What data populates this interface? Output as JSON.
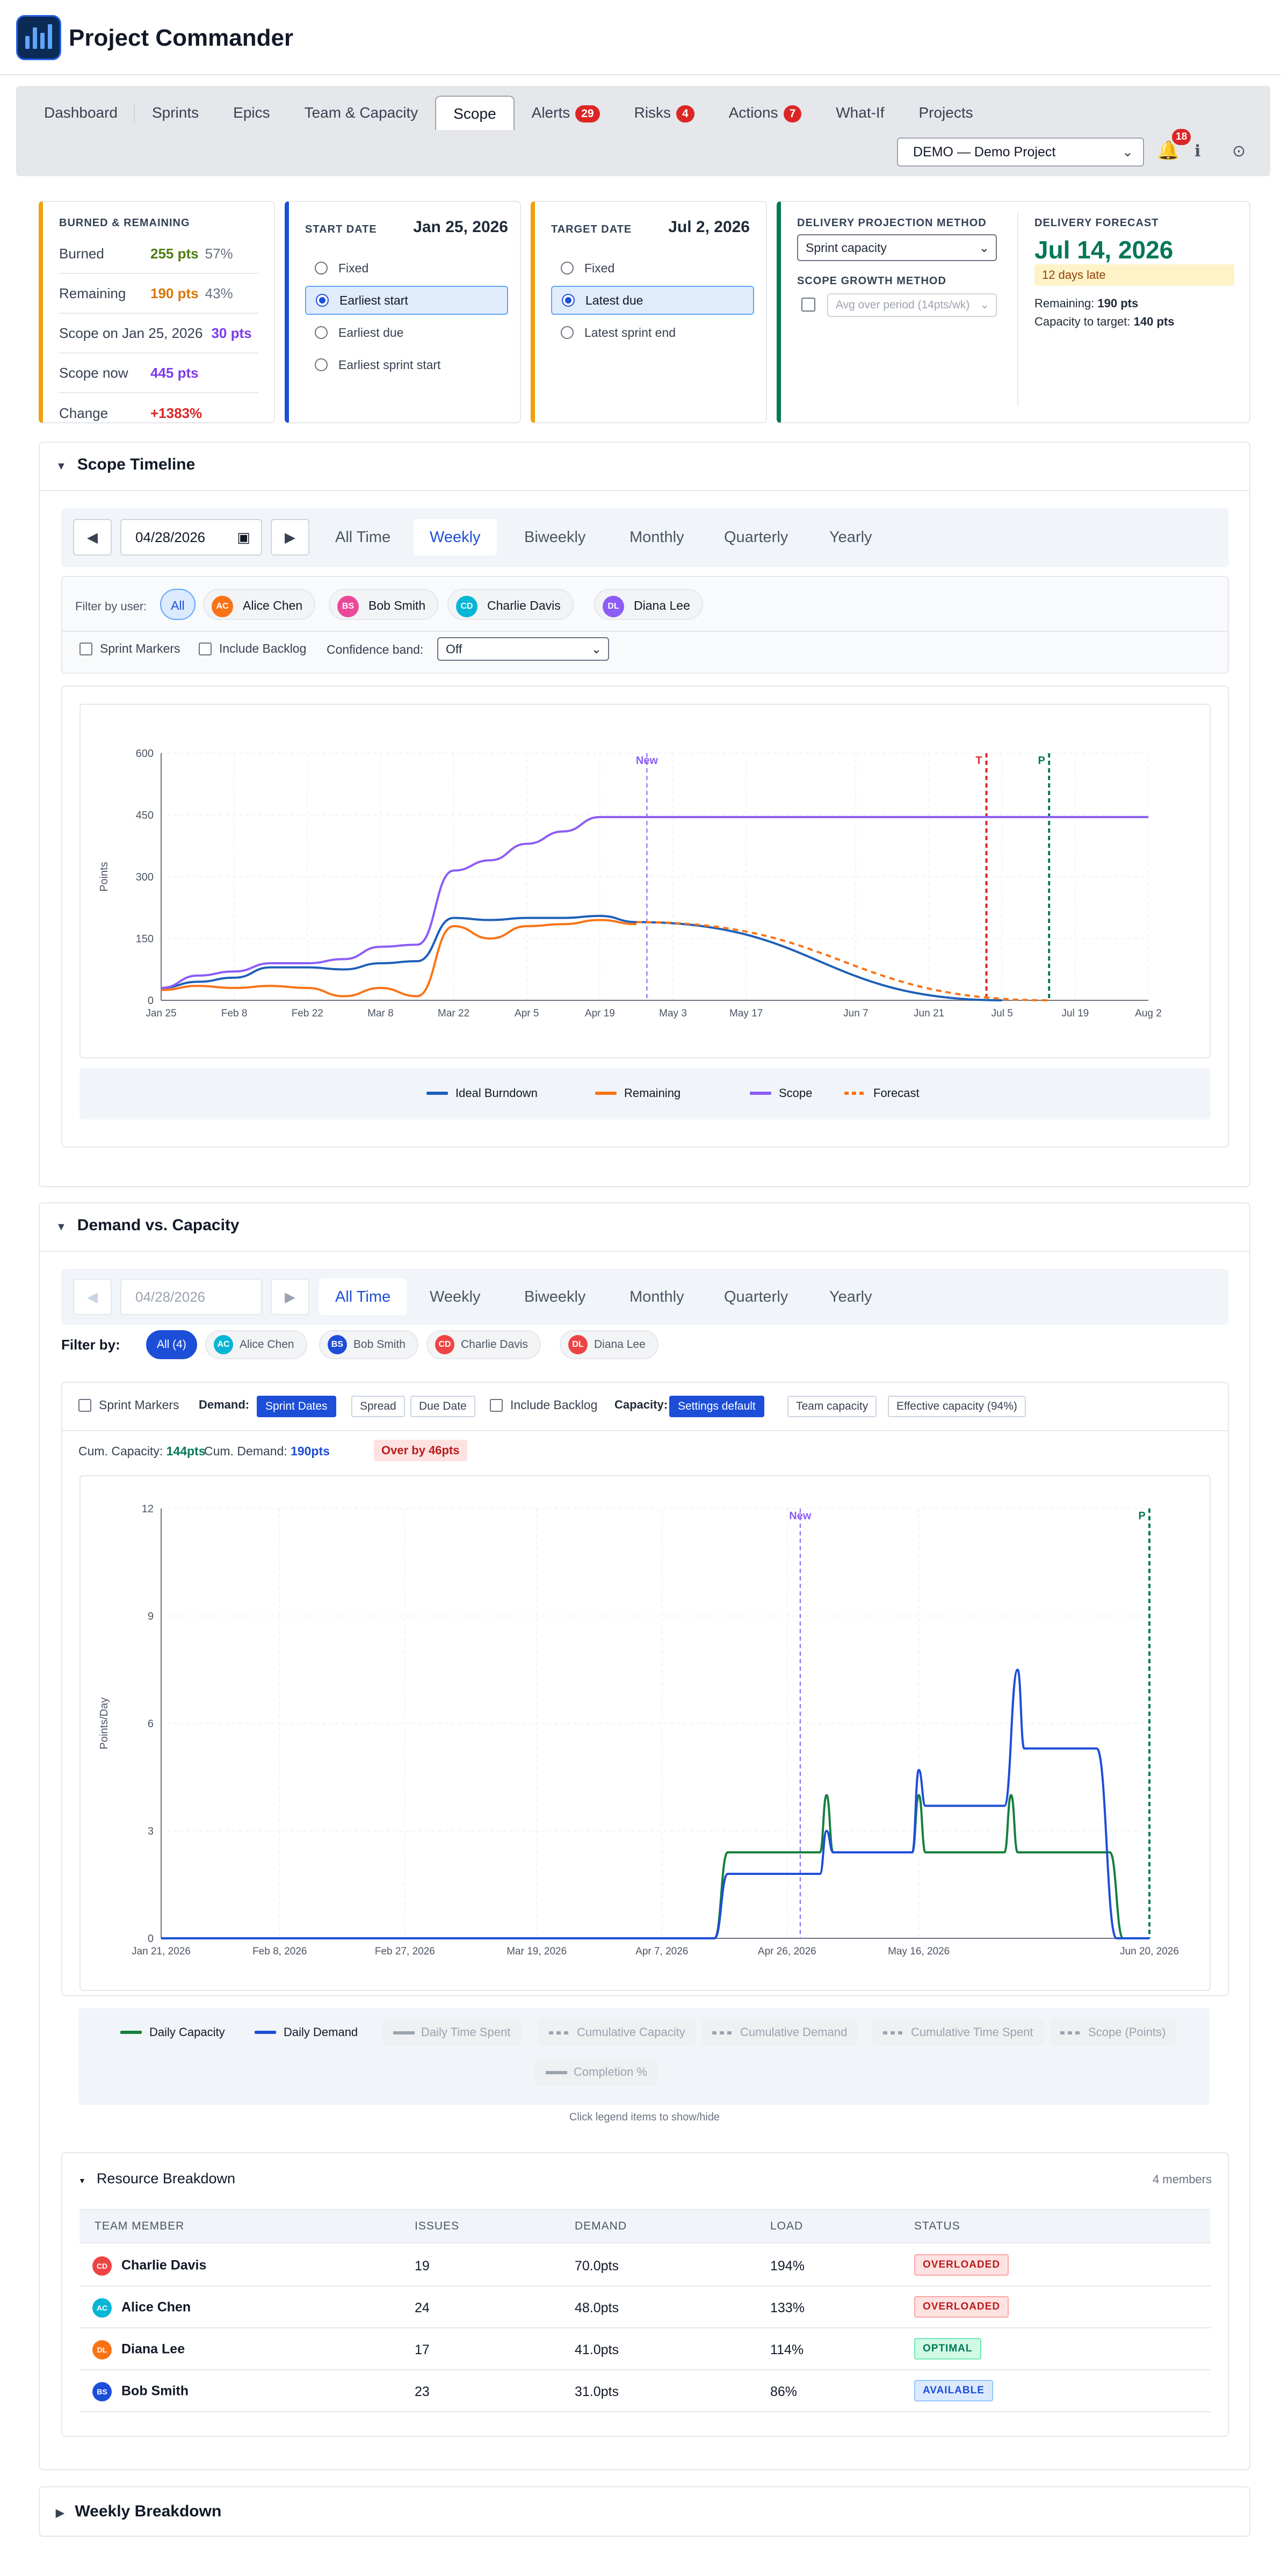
{
  "app": {
    "title": "Project Commander",
    "logo_icon": "bar-chart-logo-icon"
  },
  "nav": {
    "tabs": [
      {
        "label": "Dashboard"
      },
      {
        "label": "Sprints"
      },
      {
        "label": "Epics"
      },
      {
        "label": "Team & Capacity"
      },
      {
        "label": "Scope",
        "active": true
      },
      {
        "label": "Alerts",
        "badge": "29"
      },
      {
        "label": "Risks",
        "badge": "4"
      },
      {
        "label": "Actions",
        "badge": "7"
      },
      {
        "label": "What-If"
      },
      {
        "label": "Projects"
      }
    ],
    "project": "DEMO — Demo Project",
    "notifications": "18"
  },
  "summary": {
    "burned_title": "BURNED & REMAINING",
    "rows": [
      {
        "k": "Burned",
        "v": "255 pts",
        "p": "57%",
        "color": "#4d7c0f"
      },
      {
        "k": "Remaining",
        "v": "190 pts",
        "p": "43%",
        "color": "#d97706"
      },
      {
        "k": "Scope on Jan 25, 2026",
        "v": "30 pts",
        "p": "",
        "color": "#7c3aed"
      },
      {
        "k": "Scope now",
        "v": "445 pts",
        "p": "",
        "color": "#7c3aed"
      },
      {
        "k": "Change",
        "v": "+1383%",
        "p": "",
        "color": "#dc2626"
      }
    ],
    "start": {
      "label": "START DATE",
      "date": "Jan 25, 2026",
      "options": [
        "Fixed",
        "Earliest start",
        "Earliest due",
        "Earliest sprint start"
      ],
      "selected": 1
    },
    "target": {
      "label": "TARGET DATE",
      "date": "Jul 2, 2026",
      "options": [
        "Fixed",
        "Latest due",
        "Latest sprint end"
      ],
      "selected": 1
    },
    "method": {
      "label": "DELIVERY PROJECTION METHOD",
      "value": "Sprint capacity",
      "growth_label": "SCOPE GROWTH METHOD",
      "growth_value": "Avg over period (14pts/wk)"
    },
    "forecast": {
      "label": "DELIVERY FORECAST",
      "date": "Jul 14, 2026",
      "late": "12 days late",
      "remaining_label": "Remaining:",
      "remaining": "190 pts",
      "capacity_label": "Capacity to target:",
      "capacity": "140 pts"
    }
  },
  "scope_timeline": {
    "title": "Scope Timeline",
    "date": "04/28/2026",
    "periods": [
      "All Time",
      "Weekly",
      "Biweekly",
      "Monthly",
      "Quarterly",
      "Yearly"
    ],
    "active_period": "Weekly",
    "filter_label": "Filter by user:",
    "users": [
      "All",
      "Alice Chen",
      "Bob Smith",
      "Charlie Davis",
      "Diana Lee"
    ],
    "sprint_markers": "Sprint Markers",
    "include_backlog": "Include Backlog",
    "confidence_label": "Confidence band:",
    "confidence": "Off"
  },
  "demand": {
    "title": "Demand vs. Capacity",
    "date": "04/28/2026",
    "periods": [
      "All Time",
      "Weekly",
      "Biweekly",
      "Monthly",
      "Quarterly",
      "Yearly"
    ],
    "active_period": "All Time",
    "filter_label": "Filter by:",
    "users": [
      "All (4)",
      "Alice Chen",
      "Bob Smith",
      "Charlie Davis",
      "Diana Lee"
    ],
    "sprint_markers": "Sprint Markers",
    "demand_label": "Demand:",
    "demand_opts": [
      "Sprint Dates",
      "Spread",
      "Due Date"
    ],
    "include_backlog": "Include Backlog",
    "capacity_label": "Capacity:",
    "capacity_opts": [
      "Settings default",
      "Team capacity",
      "Effective capacity (94%)"
    ],
    "cum_cap_label": "Cum. Capacity:",
    "cum_cap": "144pts",
    "cum_dem_label": "Cum. Demand:",
    "cum_dem": "190pts",
    "over": "Over by 46pts",
    "legend_active": [
      "Daily Capacity",
      "Daily Demand"
    ],
    "legend_inactive": [
      "Daily Time Spent",
      "Cumulative Capacity",
      "Cumulative Demand",
      "Cumulative Time Spent",
      "Scope (Points)",
      "Completion %"
    ],
    "legend_hint": "Click legend items to show/hide"
  },
  "resources": {
    "title": "Resource Breakdown",
    "count": "4 members",
    "headers": [
      "TEAM MEMBER",
      "ISSUES",
      "DEMAND",
      "LOAD",
      "STATUS"
    ],
    "rows": [
      {
        "initials": "CD",
        "name": "Charlie Davis",
        "issues": "19",
        "demand": "70.0pts",
        "load": "194%",
        "status": "OVERLOADED",
        "color": "#ef4444",
        "st": "over"
      },
      {
        "initials": "AC",
        "name": "Alice Chen",
        "issues": "24",
        "demand": "48.0pts",
        "load": "133%",
        "status": "OVERLOADED",
        "color": "#06b6d4",
        "st": "over"
      },
      {
        "initials": "DL",
        "name": "Diana Lee",
        "issues": "17",
        "demand": "41.0pts",
        "load": "114%",
        "status": "OPTIMAL",
        "color": "#f97316",
        "st": "opt"
      },
      {
        "initials": "BS",
        "name": "Bob Smith",
        "issues": "23",
        "demand": "31.0pts",
        "load": "86%",
        "status": "AVAILABLE",
        "color": "#1d4ed8",
        "st": "av"
      }
    ]
  },
  "weekly": {
    "title": "Weekly Breakdown"
  },
  "chart_data": [
    {
      "type": "line",
      "ylabel": "Points",
      "ylim": [
        0,
        600
      ],
      "yticks": [
        0,
        150,
        300,
        450,
        600
      ],
      "xticks": [
        "Jan 25",
        "Feb 8",
        "Feb 22",
        "Mar 8",
        "Mar 22",
        "Apr 5",
        "Apr 19",
        "May 3",
        "May 17",
        "Jun 7",
        "Jun 21",
        "Jul 5",
        "Jul 19",
        "Aug 2"
      ],
      "xlim": [
        "2026-01-25",
        "2026-08-02"
      ],
      "markers": [
        {
          "label": "New",
          "x": "2026-04-28",
          "color": "#8b5cf6"
        },
        {
          "label": "T",
          "x": "2026-07-02",
          "color": "#dc2626"
        },
        {
          "label": "P",
          "x": "2026-07-14",
          "color": "#047857"
        }
      ],
      "grid": true,
      "legend": "bottom",
      "series": [
        {
          "name": "Ideal Burndown",
          "color": "#1d5fb8",
          "points": [
            [
              "2026-01-25",
              30
            ],
            [
              "2026-02-01",
              45
            ],
            [
              "2026-02-08",
              55
            ],
            [
              "2026-02-15",
              80
            ],
            [
              "2026-02-22",
              80
            ],
            [
              "2026-03-01",
              75
            ],
            [
              "2026-03-08",
              90
            ],
            [
              "2026-03-15",
              95
            ],
            [
              "2026-03-22",
              200
            ],
            [
              "2026-03-29",
              195
            ],
            [
              "2026-04-05",
              200
            ],
            [
              "2026-04-12",
              200
            ],
            [
              "2026-04-19",
              205
            ],
            [
              "2026-04-26",
              190
            ],
            [
              "2026-07-05",
              0
            ]
          ]
        },
        {
          "name": "Remaining",
          "color": "#f97316",
          "points": [
            [
              "2026-01-25",
              25
            ],
            [
              "2026-02-01",
              35
            ],
            [
              "2026-02-08",
              30
            ],
            [
              "2026-02-15",
              35
            ],
            [
              "2026-02-22",
              30
            ],
            [
              "2026-03-01",
              10
            ],
            [
              "2026-03-08",
              30
            ],
            [
              "2026-03-15",
              10
            ],
            [
              "2026-03-22",
              180
            ],
            [
              "2026-03-29",
              150
            ],
            [
              "2026-04-05",
              180
            ],
            [
              "2026-04-12",
              185
            ],
            [
              "2026-04-19",
              195
            ],
            [
              "2026-04-26",
              185
            ]
          ]
        },
        {
          "name": "Scope",
          "color": "#8b5cf6",
          "points": [
            [
              "2026-01-25",
              30
            ],
            [
              "2026-02-01",
              60
            ],
            [
              "2026-02-08",
              70
            ],
            [
              "2026-02-15",
              90
            ],
            [
              "2026-02-22",
              90
            ],
            [
              "2026-03-01",
              100
            ],
            [
              "2026-03-08",
              130
            ],
            [
              "2026-03-15",
              135
            ],
            [
              "2026-03-22",
              315
            ],
            [
              "2026-03-29",
              340
            ],
            [
              "2026-04-05",
              380
            ],
            [
              "2026-04-12",
              410
            ],
            [
              "2026-04-19",
              445
            ],
            [
              "2026-04-26",
              445
            ],
            [
              "2026-08-02",
              445
            ]
          ]
        },
        {
          "name": "Forecast",
          "color": "#f97316",
          "dashed": true,
          "points": [
            [
              "2026-04-26",
              190
            ],
            [
              "2026-07-14",
              0
            ]
          ]
        }
      ]
    },
    {
      "type": "line",
      "ylabel": "Points/Day",
      "ylim": [
        0,
        12
      ],
      "yticks": [
        0,
        3,
        6,
        9,
        12
      ],
      "xticks": [
        "Jan 21, 2026",
        "Feb 8, 2026",
        "Feb 27, 2026",
        "Mar 19, 2026",
        "Apr 7, 2026",
        "Apr 26, 2026",
        "May 16, 2026",
        "Jun 20, 2026"
      ],
      "xlim": [
        "2026-01-21",
        "2026-06-20"
      ],
      "markers": [
        {
          "label": "New",
          "x": "2026-04-28",
          "color": "#8b5cf6"
        },
        {
          "label": "P",
          "x": "2026-06-20",
          "color": "#047857"
        }
      ],
      "grid": true,
      "legend": "bottom",
      "series": [
        {
          "name": "Daily Capacity",
          "color": "#15803d",
          "points": [
            [
              "2026-01-21",
              0
            ],
            [
              "2026-04-15",
              0
            ],
            [
              "2026-04-17",
              2.4
            ],
            [
              "2026-05-01",
              2.4
            ],
            [
              "2026-05-02",
              4
            ],
            [
              "2026-05-03",
              2.4
            ],
            [
              "2026-05-15",
              2.4
            ],
            [
              "2026-05-16",
              4
            ],
            [
              "2026-05-17",
              2.4
            ],
            [
              "2026-05-29",
              2.4
            ],
            [
              "2026-05-30",
              4
            ],
            [
              "2026-05-31",
              2.4
            ],
            [
              "2026-06-14",
              2.4
            ],
            [
              "2026-06-16",
              0
            ],
            [
              "2026-06-20",
              0
            ]
          ]
        },
        {
          "name": "Daily Demand",
          "color": "#1d4ed8",
          "points": [
            [
              "2026-01-21",
              0
            ],
            [
              "2026-04-15",
              0
            ],
            [
              "2026-04-17",
              1.8
            ],
            [
              "2026-05-01",
              1.8
            ],
            [
              "2026-05-02",
              3
            ],
            [
              "2026-05-03",
              2.4
            ],
            [
              "2026-05-15",
              2.4
            ],
            [
              "2026-05-16",
              4.7
            ],
            [
              "2026-05-17",
              3.7
            ],
            [
              "2026-05-29",
              3.7
            ],
            [
              "2026-05-31",
              7.5
            ],
            [
              "2026-06-01",
              5.3
            ],
            [
              "2026-06-12",
              5.3
            ],
            [
              "2026-06-15",
              0
            ],
            [
              "2026-06-20",
              0
            ]
          ]
        }
      ]
    }
  ]
}
